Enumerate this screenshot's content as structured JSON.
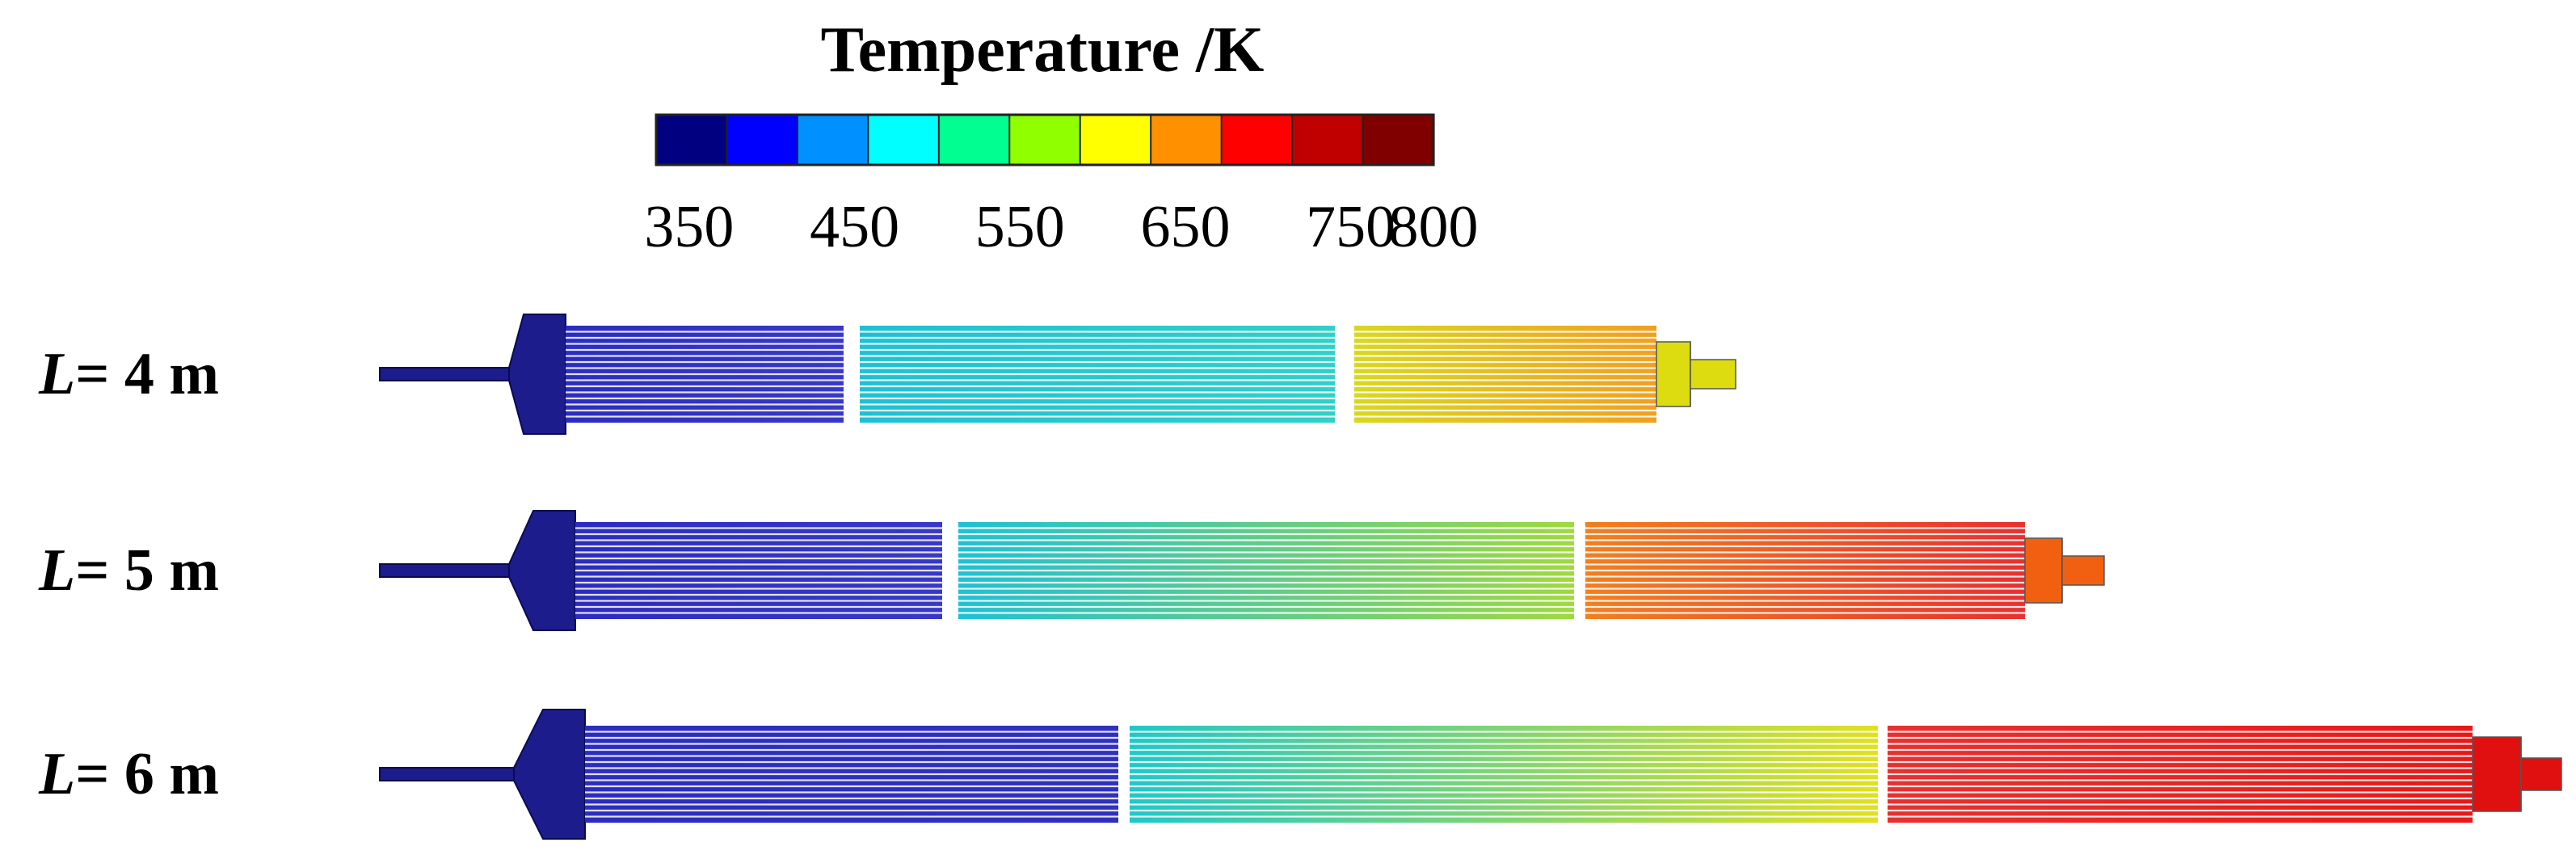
{
  "colorbar": {
    "title": "Temperature /K",
    "ticks": [
      350,
      450,
      550,
      650,
      750,
      800
    ],
    "min": 330,
    "max": 800,
    "num_bands": 11,
    "colors": [
      "#000080",
      "#0000ff",
      "#0090ff",
      "#00ffff",
      "#00ff90",
      "#90ff00",
      "#ffff00",
      "#ff9000",
      "#ff0000",
      "#c00000",
      "#800000"
    ]
  },
  "configurations": [
    {
      "label_var": "L",
      "label_rest": "= 4 m",
      "inlet_color": "#1c1c8c",
      "outlet_color": "#dcdc10",
      "sections": [
        {
          "start_color": "#2c2cc0",
          "end_color": "#3838c8"
        },
        {
          "start_color": "#20c0d4",
          "end_color": "#30d0c8"
        },
        {
          "start_color": "#d8d820",
          "end_color": "#f0a020"
        }
      ]
    },
    {
      "label_var": "L",
      "label_rest": "= 5 m",
      "inlet_color": "#1c1c8c",
      "outlet_color": "#f06010",
      "sections": [
        {
          "start_color": "#2c2cc0",
          "end_color": "#3838c8"
        },
        {
          "start_color": "#20c0d4",
          "end_color": "#a0d840"
        },
        {
          "start_color": "#f08020",
          "end_color": "#e83030"
        }
      ]
    },
    {
      "label_var": "L",
      "label_rest": "= 6 m",
      "inlet_color": "#1c1c8c",
      "outlet_color": "#e01010",
      "sections": [
        {
          "start_color": "#2c2cc0",
          "end_color": "#3030c0"
        },
        {
          "start_color": "#20c8c8",
          "end_color": "#e0e020"
        },
        {
          "start_color": "#e83030",
          "end_color": "#e81818"
        }
      ]
    }
  ]
}
